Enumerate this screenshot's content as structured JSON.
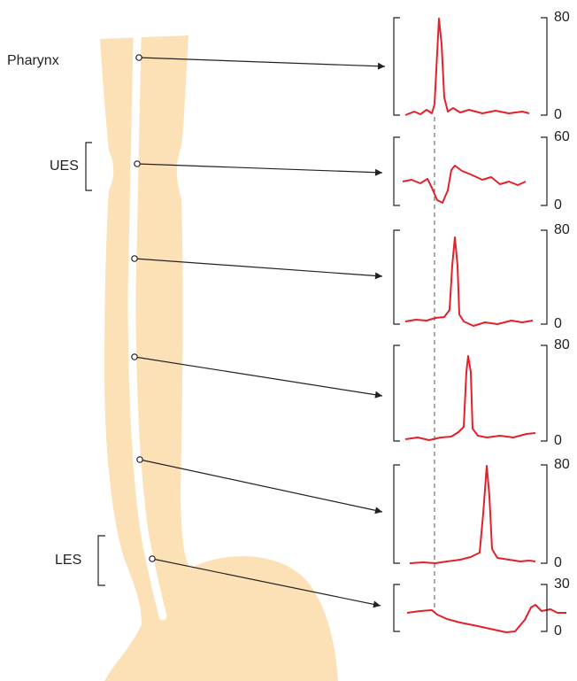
{
  "labels": {
    "pharynx": "Pharynx",
    "ues": "UES",
    "les": "LES"
  },
  "panels": [
    {
      "top": 80,
      "bottom": 0
    },
    {
      "top": 60,
      "bottom": 0
    },
    {
      "top": 80,
      "bottom": 0
    },
    {
      "top": 80,
      "bottom": 0
    },
    {
      "top": 80,
      "bottom": 0
    },
    {
      "top": 30,
      "bottom": 0
    }
  ]
}
